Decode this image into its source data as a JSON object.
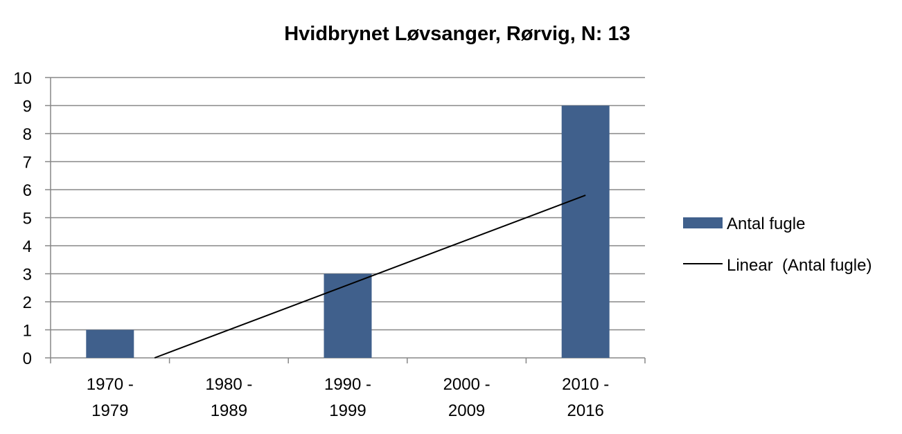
{
  "chart_data": {
    "type": "bar",
    "title": "Hvidbrynet Løvsanger, Rørvig, N: 13",
    "categories": [
      [
        "1970 -",
        "1979"
      ],
      [
        "1980 -",
        "1989"
      ],
      [
        "1990 -",
        "1999"
      ],
      [
        "2000 -",
        "2009"
      ],
      [
        "2010 -",
        "2016"
      ]
    ],
    "series": [
      {
        "name": "Antal fugle",
        "values": [
          1,
          0,
          3,
          0,
          9
        ],
        "color": "#40608C"
      }
    ],
    "trendline": {
      "name": "Linear  (Antal fugle)",
      "type": "linear",
      "color": "#000000"
    },
    "xlabel": "",
    "ylabel": "",
    "ylim": [
      0,
      10
    ],
    "yticks": [
      0,
      1,
      2,
      3,
      4,
      5,
      6,
      7,
      8,
      9,
      10
    ],
    "grid": true,
    "legend_position": "right"
  }
}
